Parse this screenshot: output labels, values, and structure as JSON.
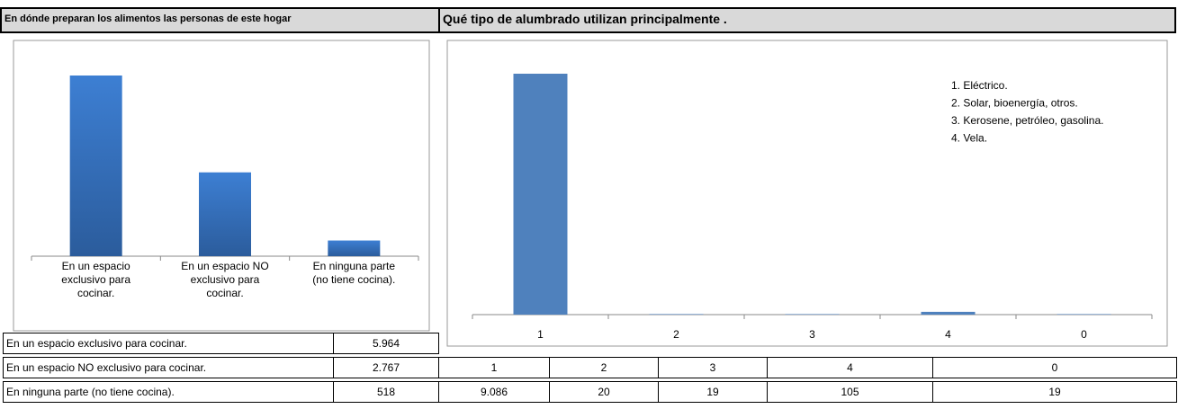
{
  "chart_data": [
    {
      "type": "bar",
      "title": "En dónde preparan los alimentos las personas de este hogar",
      "categories": [
        "En un espacio exclusivo para cocinar.",
        "En un espacio NO exclusivo para cocinar.",
        "En ninguna parte (no tiene cocina)."
      ],
      "values": [
        5964,
        2767,
        518
      ],
      "value_labels": [
        "5.964",
        "2.767",
        "518"
      ],
      "color": "#3a78c8"
    },
    {
      "type": "bar",
      "title": "Qué tipo de alumbrado utilizan principalmente .",
      "categories": [
        "1",
        "2",
        "3",
        "4",
        "0"
      ],
      "values": [
        9086,
        20,
        19,
        105,
        19
      ],
      "value_labels": [
        "9.086",
        "20",
        "19",
        "105",
        "19"
      ],
      "color": "#4f81bd",
      "annotations": [
        "1. Eléctrico.",
        "2. Solar, bioenergía, otros.",
        "3. Kerosene, petróleo, gasolina.",
        "4. Vela."
      ]
    }
  ]
}
